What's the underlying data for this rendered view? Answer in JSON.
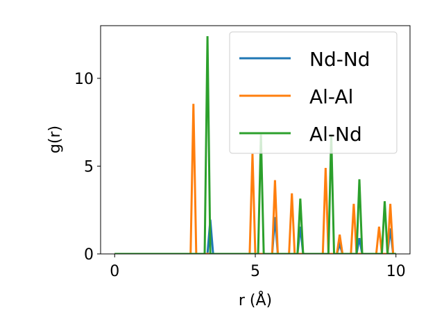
{
  "chart_data": {
    "type": "line",
    "title": "",
    "xlabel": "r (Å)",
    "ylabel": "g(r)",
    "xlim": [
      -0.5,
      10.5
    ],
    "ylim": [
      0,
      13
    ],
    "xticks": [
      0,
      5,
      10
    ],
    "yticks": [
      0,
      5,
      10
    ],
    "grid": false,
    "legend_position": "upper right",
    "series": [
      {
        "name": "Nd-Nd",
        "color": "#1f77b4",
        "x": [
          0,
          3.3,
          3.4,
          3.5,
          5.6,
          5.7,
          5.8,
          6.5,
          6.6,
          6.7,
          7.9,
          8.0,
          8.1,
          8.6,
          8.7,
          8.8,
          9.7,
          9.8,
          9.9,
          10.0
        ],
        "y": [
          0,
          0,
          1.95,
          0,
          0,
          2.1,
          0,
          0,
          1.55,
          0,
          0,
          0.55,
          0,
          0,
          0.9,
          0,
          0,
          1.45,
          0,
          0
        ]
      },
      {
        "name": "Al-Al",
        "color": "#ff7f0e",
        "x": [
          0,
          2.7,
          2.8,
          2.9,
          4.8,
          4.9,
          5.0,
          5.6,
          5.7,
          5.8,
          6.2,
          6.3,
          6.4,
          7.4,
          7.5,
          7.6,
          7.9,
          8.0,
          8.1,
          8.4,
          8.5,
          8.6,
          9.3,
          9.4,
          9.5,
          9.7,
          9.8,
          9.9,
          10.0
        ],
        "y": [
          0,
          0,
          8.55,
          0,
          0,
          5.7,
          0,
          0,
          4.2,
          0,
          0,
          3.45,
          0,
          0,
          4.9,
          0,
          0,
          1.1,
          0,
          0,
          2.85,
          0,
          0,
          1.55,
          0,
          0,
          2.85,
          0,
          0
        ]
      },
      {
        "name": "Al-Nd",
        "color": "#2ca02c",
        "x": [
          0,
          3.2,
          3.3,
          3.4,
          5.1,
          5.2,
          5.3,
          6.5,
          6.6,
          6.7,
          7.6,
          7.7,
          7.8,
          8.6,
          8.7,
          8.8,
          9.5,
          9.6,
          9.7,
          10.0
        ],
        "y": [
          0,
          0,
          12.4,
          0,
          0,
          6.8,
          0,
          0,
          3.15,
          0,
          0,
          6.8,
          0,
          0,
          4.25,
          0,
          0,
          3.0,
          0,
          0
        ]
      }
    ]
  }
}
